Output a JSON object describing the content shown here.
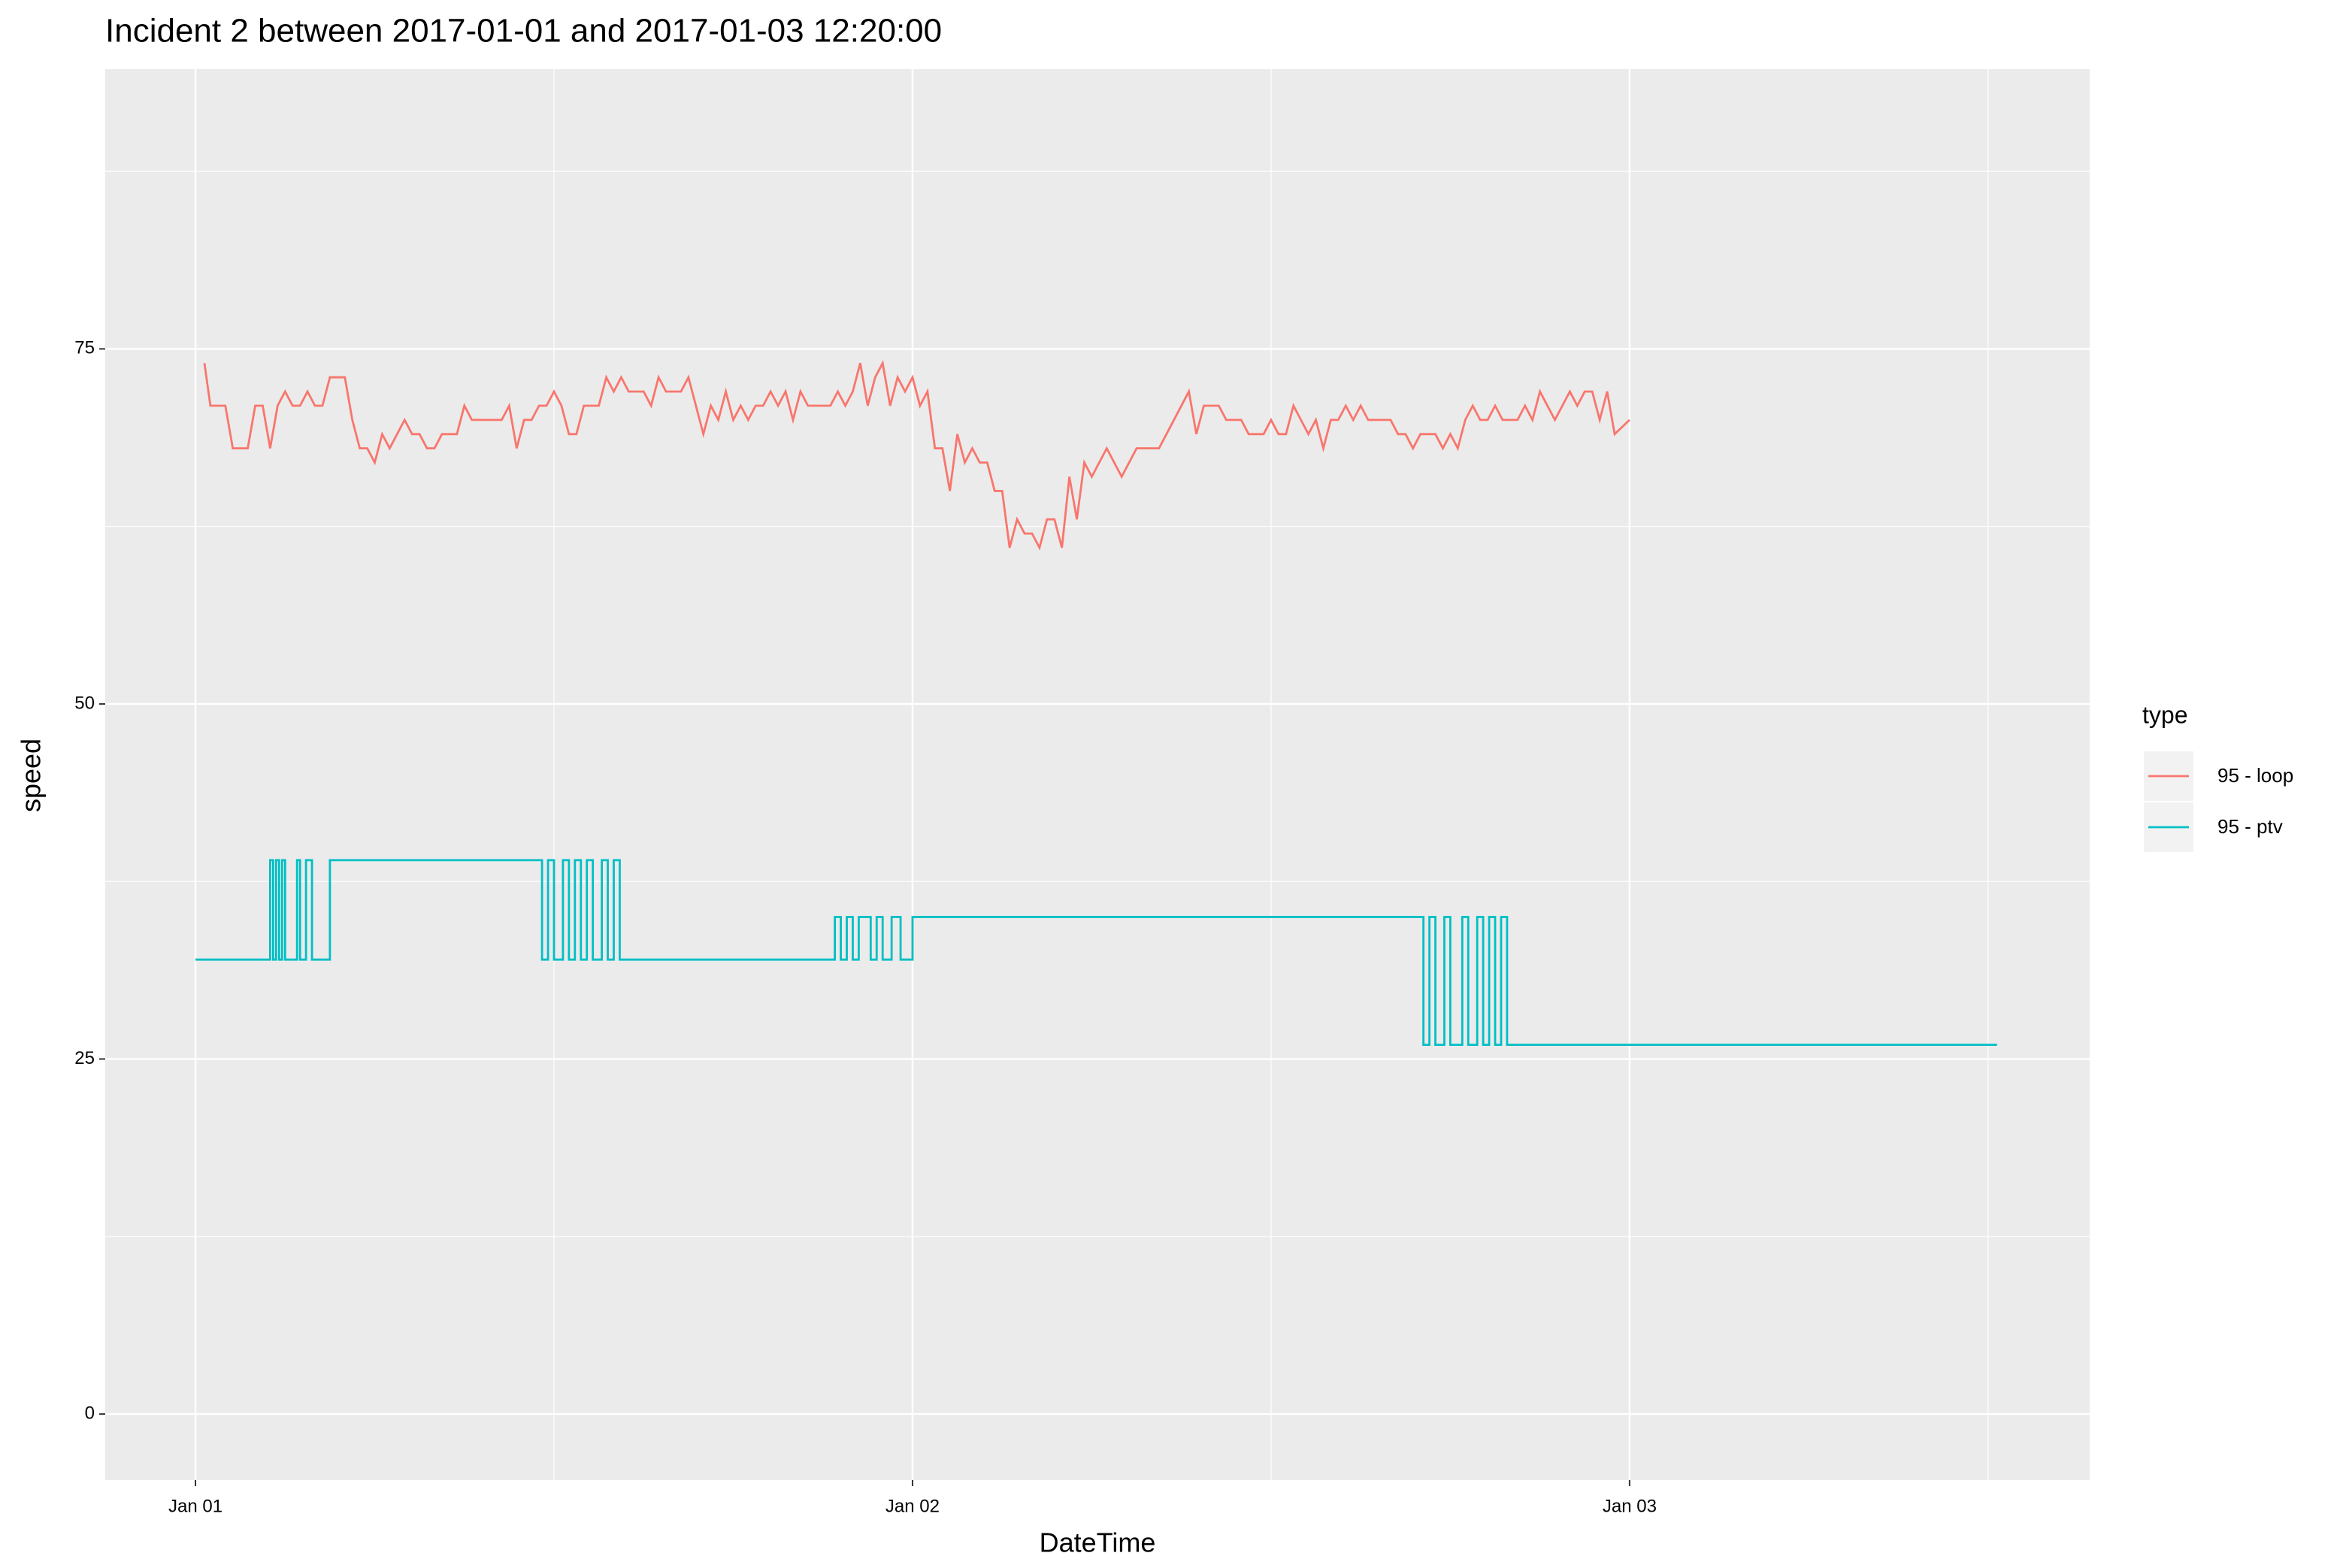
{
  "chart_data": {
    "type": "line",
    "title": "Incident 2 between 2017-01-01 and 2017-01-03 12:20:00",
    "x_label": "DateTime",
    "y_label": "speed",
    "xlim": [
      -3.02,
      63.4
    ],
    "ylim": [
      -4.65,
      94.7
    ],
    "xticks": [
      {
        "value": 0,
        "label": "Jan 01"
      },
      {
        "value": 24,
        "label": "Jan 02"
      },
      {
        "value": 48,
        "label": "Jan 03"
      }
    ],
    "x_minor_grid": [
      12,
      36,
      60
    ],
    "yticks": [
      0,
      25,
      50,
      75
    ],
    "y_minor_grid": [
      12.5,
      37.5,
      62.5,
      87.5
    ],
    "grid": true,
    "legend_title": "type",
    "legend_position": "right",
    "series": [
      {
        "name": "95 - loop",
        "color": "#f8766d",
        "step": false,
        "x": [
          0.3,
          0.5,
          1,
          1.25,
          1.75,
          2,
          2.25,
          2.5,
          2.75,
          3,
          3.25,
          3.5,
          3.75,
          4,
          4.25,
          4.5,
          5,
          5.25,
          5.5,
          5.75,
          6,
          6.25,
          6.5,
          7,
          7.25,
          7.5,
          7.75,
          8,
          8.25,
          8.75,
          9,
          9.25,
          10.25,
          10.5,
          10.75,
          11,
          11.25,
          11.5,
          11.75,
          12,
          12.25,
          12.5,
          12.75,
          13,
          13.25,
          13.5,
          13.75,
          14,
          14.25,
          14.5,
          15,
          15.25,
          15.5,
          15.75,
          16.25,
          16.5,
          16.75,
          17,
          17.25,
          17.5,
          17.75,
          18,
          18.25,
          18.5,
          18.75,
          19,
          19.25,
          19.5,
          19.75,
          20,
          20.25,
          20.5,
          21.25,
          21.5,
          21.75,
          22,
          22.25,
          22.5,
          22.75,
          23,
          23.25,
          23.5,
          23.75,
          24,
          24.25,
          24.5,
          24.75,
          25,
          25.25,
          25.5,
          25.75,
          26,
          26.25,
          26.5,
          26.75,
          27,
          27.25,
          27.5,
          27.75,
          28,
          28.25,
          28.5,
          28.75,
          29,
          29.25,
          29.5,
          29.75,
          30,
          30.5,
          31,
          31.5,
          32.25,
          33.25,
          33.5,
          33.75,
          34.25,
          34.5,
          35,
          35.25,
          35.75,
          36,
          36.25,
          36.5,
          36.75,
          37,
          37.25,
          37.5,
          37.75,
          38,
          38.25,
          38.5,
          38.75,
          39,
          39.25,
          40,
          40.25,
          40.5,
          40.75,
          41,
          41.5,
          41.75,
          42,
          42.25,
          42.5,
          42.75,
          43,
          43.25,
          43.5,
          43.75,
          44.25,
          44.5,
          44.75,
          45,
          45.5,
          46,
          46.25,
          46.5,
          46.75,
          47,
          47.25,
          47.5,
          48
        ],
        "values": [
          74,
          71,
          71,
          68,
          68,
          71,
          71,
          68,
          71,
          72,
          71,
          71,
          72,
          71,
          71,
          73,
          73,
          70,
          68,
          68,
          67,
          69,
          68,
          70,
          69,
          69,
          68,
          68,
          69,
          69,
          71,
          70,
          70,
          71,
          68,
          70,
          70,
          71,
          71,
          72,
          71,
          69,
          69,
          71,
          71,
          71,
          73,
          72,
          73,
          72,
          72,
          71,
          73,
          72,
          72,
          73,
          71,
          69,
          71,
          70,
          72,
          70,
          71,
          70,
          71,
          71,
          72,
          71,
          72,
          70,
          72,
          71,
          71,
          72,
          71,
          72,
          74,
          71,
          73,
          74,
          71,
          73,
          72,
          73,
          71,
          72,
          68,
          68,
          65,
          69,
          67,
          68,
          67,
          67,
          65,
          65,
          61,
          63,
          62,
          62,
          61,
          63,
          63,
          61,
          66,
          63,
          67,
          66,
          68,
          66,
          68,
          68,
          72,
          69,
          71,
          71,
          70,
          70,
          69,
          69,
          70,
          69,
          69,
          71,
          70,
          69,
          70,
          68,
          70,
          70,
          71,
          70,
          71,
          70,
          70,
          69,
          69,
          68,
          69,
          69,
          68,
          69,
          68,
          70,
          71,
          70,
          70,
          71,
          70,
          70,
          71,
          70,
          72,
          70,
          72,
          71,
          72,
          72,
          70,
          72,
          69,
          70
        ]
      },
      {
        "name": "95 - ptv",
        "color": "#00bfc4",
        "step": true,
        "x": [
          0,
          2.5,
          2.6,
          2.7,
          2.8,
          2.9,
          3.0,
          3.4,
          3.5,
          3.7,
          3.9,
          4.5,
          11.6,
          11.8,
          12.0,
          12.3,
          12.5,
          12.7,
          12.9,
          13.1,
          13.3,
          13.6,
          13.8,
          14.0,
          14.2,
          21.4,
          21.6,
          21.8,
          22.0,
          22.2,
          22.6,
          22.8,
          23.0,
          23.3,
          23.6,
          24.0,
          41.1,
          41.3,
          41.5,
          41.8,
          42.0,
          42.4,
          42.6,
          42.9,
          43.1,
          43.3,
          43.5,
          43.7,
          43.9,
          60.3
        ],
        "values": [
          32,
          39,
          32,
          39,
          32,
          39,
          32,
          39,
          32,
          39,
          32,
          39,
          32,
          39,
          32,
          39,
          32,
          39,
          32,
          39,
          32,
          39,
          32,
          39,
          32,
          35,
          32,
          35,
          32,
          35,
          32,
          35,
          32,
          35,
          32,
          35,
          26,
          35,
          26,
          35,
          26,
          35,
          26,
          35,
          26,
          35,
          26,
          35,
          26,
          26
        ]
      }
    ]
  }
}
